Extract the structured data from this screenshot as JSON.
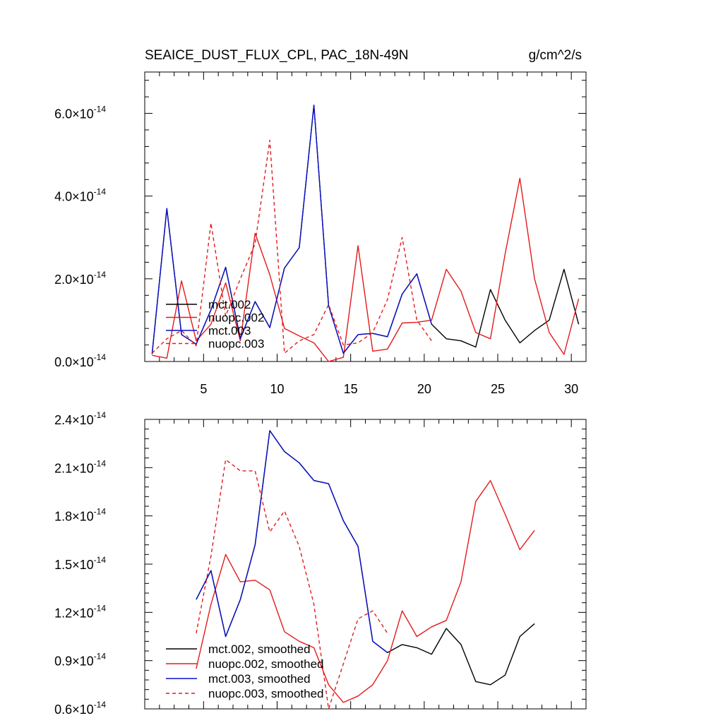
{
  "chart_data": [
    {
      "type": "line",
      "title": "SEAICE_DUST_FLUX_CPL, PAC_18N-49N",
      "units": "g/cm^2/s",
      "xlim": [
        1,
        31
      ],
      "ylim": [
        0,
        7e-14
      ],
      "x_ticks": [
        5,
        10,
        15,
        20,
        25,
        30
      ],
      "x_tick_labels": [
        "5",
        "10",
        "15",
        "20",
        "25",
        "30"
      ],
      "y_ticks": [
        0,
        2e-14,
        4e-14,
        6e-14
      ],
      "y_tick_mantissas": [
        "0.0",
        "2.0",
        "4.0",
        "6.0"
      ],
      "y_tick_exponent": "-14",
      "times_sign": "×",
      "legend_position": "lower-left",
      "series": [
        {
          "name": "mct.002",
          "color": "#000000",
          "dash": "solid",
          "x_start": 1.5,
          "values": [
            0.18,
            3.7,
            0.65,
            0.42,
            1.25,
            2.28,
            0.55,
            1.45,
            0.82,
            2.26,
            2.75,
            6.2,
            1.35,
            0.2,
            0.65,
            0.68,
            0.6,
            1.63,
            2.12,
            0.9,
            0.55,
            0.5,
            0.35,
            1.74,
            1.0,
            0.45,
            0.75,
            1.0,
            2.23,
            0.9
          ]
        },
        {
          "name": "nuopc.002",
          "color": "#e41a1c",
          "dash": "solid",
          "x_start": 1.5,
          "values": [
            0.15,
            0.08,
            1.95,
            0.5,
            0.9,
            1.9,
            0.5,
            3.1,
            2.1,
            0.8,
            0.62,
            0.45,
            0.0,
            0.1,
            2.8,
            0.25,
            0.3,
            0.93,
            0.95,
            1.0,
            2.23,
            1.7,
            0.7,
            0.55,
            2.6,
            4.43,
            2.0,
            0.7,
            0.17,
            1.52
          ]
        },
        {
          "name": "mct.003",
          "color": "#0a10c8",
          "dash": "solid",
          "x_start": 1.5,
          "values": [
            0.18,
            3.7,
            0.65,
            0.42,
            1.25,
            2.28,
            0.55,
            1.45,
            0.82,
            2.26,
            2.75,
            6.2,
            1.35,
            0.2,
            0.65,
            0.68,
            0.6,
            1.63,
            2.12,
            0.9
          ]
        },
        {
          "name": "nuopc.003",
          "color": "#e41a1c",
          "dash": "dashed",
          "x_start": 1.5,
          "values": [
            0.2,
            0.55,
            0.75,
            0.38,
            3.35,
            1.1,
            2.0,
            2.85,
            5.35,
            0.2,
            0.5,
            0.65,
            1.38,
            0.4,
            0.45,
            0.7,
            1.5,
            3.0,
            1.0,
            0.5
          ]
        }
      ]
    },
    {
      "type": "line",
      "xlim": [
        1,
        31
      ],
      "ylim": [
        6e-15,
        2.4e-14
      ],
      "x_ticks": [
        5,
        10,
        15,
        20,
        25,
        30
      ],
      "x_tick_labels": [],
      "y_ticks": [
        6e-15,
        9e-15,
        1.2e-14,
        1.5e-14,
        1.8e-14,
        2.1e-14,
        2.4e-14
      ],
      "y_tick_mantissas": [
        "0.6",
        "0.9",
        "1.2",
        "1.5",
        "1.8",
        "2.1",
        "2.4"
      ],
      "y_tick_exponent": "-14",
      "times_sign": "×",
      "legend_position": "lower-left",
      "series": [
        {
          "name": "mct.002, smoothed",
          "color": "#000000",
          "dash": "solid",
          "x_start": 4.5,
          "values": [
            1.28,
            1.46,
            1.05,
            1.28,
            1.62,
            2.33,
            2.2,
            2.13,
            2.02,
            2.0,
            1.77,
            1.61,
            1.02,
            0.95,
            1.0,
            0.98,
            0.94,
            1.1,
            1.0,
            0.77,
            0.75,
            0.81,
            1.05,
            1.13
          ]
        },
        {
          "name": "nuopc.002, smoothed",
          "color": "#e41a1c",
          "dash": "solid",
          "x_start": 4.5,
          "values": [
            0.85,
            1.25,
            1.56,
            1.39,
            1.4,
            1.34,
            1.08,
            1.02,
            0.98,
            0.75,
            0.64,
            0.68,
            0.75,
            0.9,
            1.21,
            1.05,
            1.11,
            1.15,
            1.39,
            1.89,
            2.02,
            1.81,
            1.59,
            1.71
          ]
        },
        {
          "name": "mct.003, smoothed",
          "color": "#0a10c8",
          "dash": "solid",
          "x_start": 4.5,
          "values": [
            1.28,
            1.46,
            1.05,
            1.28,
            1.62,
            2.33,
            2.2,
            2.13,
            2.02,
            2.0,
            1.77,
            1.61,
            1.02,
            0.95
          ]
        },
        {
          "name": "nuopc.003, smoothed",
          "color": "#e41a1c",
          "dash": "dashed",
          "x_start": 4.5,
          "values": [
            1.07,
            1.55,
            2.15,
            2.08,
            2.08,
            1.7,
            1.83,
            1.61,
            1.25,
            0.6,
            0.88,
            1.16,
            1.21,
            1.07
          ]
        }
      ]
    }
  ]
}
